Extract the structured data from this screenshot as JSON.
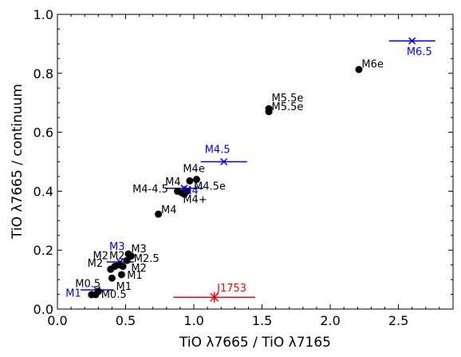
{
  "chart_data": {
    "type": "scatter",
    "xlabel": "TiO λ7665 / TiO λ7165",
    "ylabel": "TiO λ7665 / continuum",
    "xlim": [
      0.0,
      2.9
    ],
    "ylim": [
      0.0,
      1.0
    ],
    "x_ticks": [
      {
        "value": 0.0,
        "label": "0.0"
      },
      {
        "value": 0.5,
        "label": "0.5"
      },
      {
        "value": 1.0,
        "label": "1.0"
      },
      {
        "value": 1.5,
        "label": "1.5"
      },
      {
        "value": 2.0,
        "label": "2.0"
      },
      {
        "value": 2.5,
        "label": "2.5"
      }
    ],
    "y_ticks": [
      {
        "value": 0.0,
        "label": "0.0"
      },
      {
        "value": 0.2,
        "label": "0.2"
      },
      {
        "value": 0.4,
        "label": "0.4"
      },
      {
        "value": 0.6,
        "label": "0.6"
      },
      {
        "value": 0.8,
        "label": "0.8"
      },
      {
        "value": 1.0,
        "label": "1.0"
      }
    ],
    "grid": false,
    "colors": {
      "stars": "#000000",
      "templates": "#0000ff",
      "target": "#ff0000"
    },
    "stars": [
      {
        "x": 0.25,
        "y": 0.049
      },
      {
        "x": 0.28,
        "y": 0.049
      },
      {
        "x": 0.3,
        "y": 0.06
      },
      {
        "x": 0.39,
        "y": 0.135
      },
      {
        "x": 0.4,
        "y": 0.105
      },
      {
        "x": 0.42,
        "y": 0.145
      },
      {
        "x": 0.45,
        "y": 0.15
      },
      {
        "x": 0.48,
        "y": 0.145
      },
      {
        "x": 0.47,
        "y": 0.117
      },
      {
        "x": 0.51,
        "y": 0.165
      },
      {
        "x": 0.52,
        "y": 0.187
      },
      {
        "x": 0.54,
        "y": 0.18
      },
      {
        "x": 0.74,
        "y": 0.322
      },
      {
        "x": 0.88,
        "y": 0.4
      },
      {
        "x": 0.91,
        "y": 0.395
      },
      {
        "x": 0.93,
        "y": 0.39
      },
      {
        "x": 0.95,
        "y": 0.4
      },
      {
        "x": 0.97,
        "y": 0.435
      },
      {
        "x": 1.02,
        "y": 0.44
      },
      {
        "x": 1.55,
        "y": 0.67
      },
      {
        "x": 1.55,
        "y": 0.68
      },
      {
        "x": 2.21,
        "y": 0.813
      }
    ],
    "templates": [
      {
        "x": 0.29,
        "y": 0.065,
        "xerr": 0.12
      },
      {
        "x": 0.46,
        "y": 0.16,
        "xerr": 0.1
      },
      {
        "x": 0.93,
        "y": 0.41,
        "xerr": 0.14
      },
      {
        "x": 1.22,
        "y": 0.5,
        "xerr": 0.17
      },
      {
        "x": 2.6,
        "y": 0.91,
        "xerr": 0.17
      }
    ],
    "target": {
      "x": 1.15,
      "y": 0.04,
      "xerr": 0.3,
      "yerr": 0.018
    },
    "annotations": [
      {
        "text": "M0.5",
        "x": 0.13,
        "y": 0.075,
        "color": "black"
      },
      {
        "text": "M1",
        "x": 0.43,
        "y": 0.065,
        "color": "black"
      },
      {
        "text": "M1",
        "x": 0.06,
        "y": 0.042,
        "color": "blue"
      },
      {
        "text": "M0.5",
        "x": 0.32,
        "y": 0.038,
        "color": "black"
      },
      {
        "text": "M1",
        "x": 0.51,
        "y": 0.103,
        "color": "black"
      },
      {
        "text": "M2",
        "x": 0.54,
        "y": 0.128,
        "color": "black"
      },
      {
        "text": "M2",
        "x": 0.22,
        "y": 0.143,
        "color": "black"
      },
      {
        "text": "M3",
        "x": 0.38,
        "y": 0.2,
        "color": "blue"
      },
      {
        "text": "M2",
        "x": 0.26,
        "y": 0.17,
        "color": "black"
      },
      {
        "text": "M2",
        "x": 0.38,
        "y": 0.17,
        "color": "black"
      },
      {
        "text": "M3",
        "x": 0.54,
        "y": 0.193,
        "color": "black"
      },
      {
        "text": "M2.5",
        "x": 0.56,
        "y": 0.16,
        "color": "black"
      },
      {
        "text": "M4",
        "x": 0.76,
        "y": 0.325,
        "color": "black"
      },
      {
        "text": "M4-4.5",
        "x": 0.55,
        "y": 0.395,
        "color": "black"
      },
      {
        "text": "M4",
        "x": 0.79,
        "y": 0.42,
        "color": "black"
      },
      {
        "text": "M4",
        "x": 0.92,
        "y": 0.39,
        "color": "blue"
      },
      {
        "text": "M4.5e",
        "x": 1.0,
        "y": 0.405,
        "color": "black"
      },
      {
        "text": "M4+",
        "x": 0.92,
        "y": 0.36,
        "color": "black"
      },
      {
        "text": "M4e",
        "x": 0.92,
        "y": 0.465,
        "color": "black"
      },
      {
        "text": "M4.5",
        "x": 1.08,
        "y": 0.53,
        "color": "blue"
      },
      {
        "text": "M5.5e",
        "x": 1.57,
        "y": 0.705,
        "color": "black"
      },
      {
        "text": "M5.5e",
        "x": 1.57,
        "y": 0.675,
        "color": "black"
      },
      {
        "text": "M6e",
        "x": 2.23,
        "y": 0.82,
        "color": "black"
      },
      {
        "text": "M6.5",
        "x": 2.56,
        "y": 0.862,
        "color": "blue"
      },
      {
        "text": "J1753",
        "x": 1.17,
        "y": 0.06,
        "color": "red"
      }
    ]
  }
}
